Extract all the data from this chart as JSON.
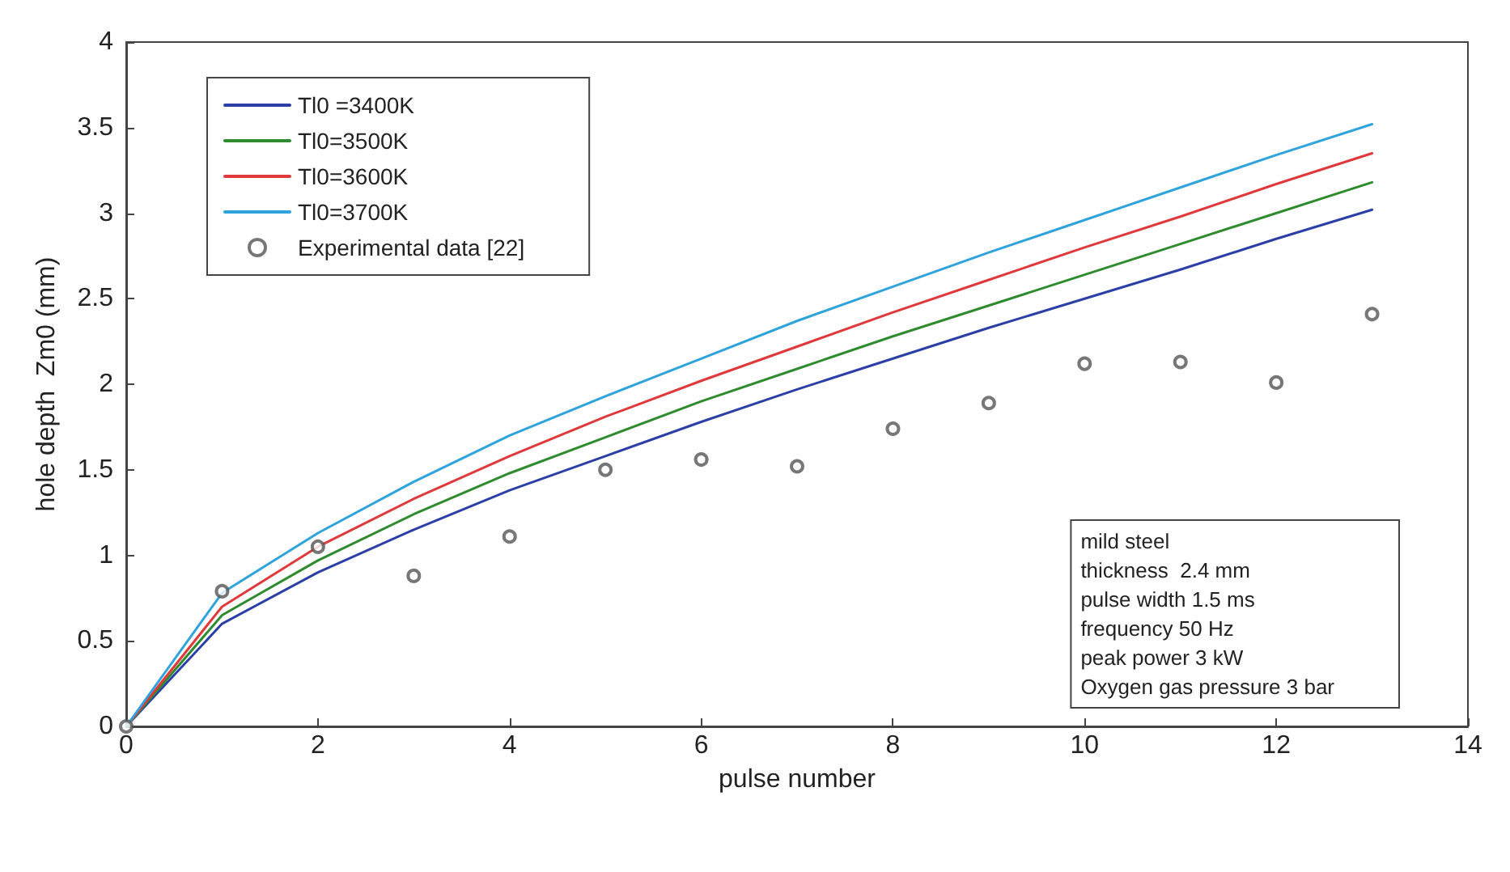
{
  "chart_data": {
    "type": "line",
    "xlabel": "pulse number",
    "ylabel": "hole depth  Zm0 (mm)",
    "x": [
      0,
      1,
      2,
      3,
      4,
      5,
      6,
      7,
      8,
      9,
      10,
      11,
      12,
      13
    ],
    "xlim": [
      0,
      14
    ],
    "xticks": [
      0,
      2,
      4,
      6,
      8,
      10,
      12,
      14
    ],
    "ylim": [
      0,
      4
    ],
    "yticks": [
      0,
      0.5,
      1,
      1.5,
      2,
      2.5,
      3,
      3.5,
      4
    ],
    "grid": false,
    "legend": "top left",
    "marker": "none",
    "line_style": "solid",
    "series": [
      {
        "name": "Tl0 =3400K",
        "color": "#2b3fa6",
        "values": [
          0,
          0.6,
          0.9,
          1.15,
          1.38,
          1.58,
          1.78,
          1.97,
          2.15,
          2.33,
          2.5,
          2.67,
          2.85,
          3.02
        ]
      },
      {
        "name": "Tl0=3500K",
        "color": "#2e8b2e",
        "values": [
          0,
          0.65,
          0.97,
          1.24,
          1.48,
          1.69,
          1.9,
          2.09,
          2.28,
          2.46,
          2.64,
          2.82,
          3.0,
          3.18
        ]
      },
      {
        "name": "Tl0=3600K",
        "color": "#e0393b",
        "values": [
          0,
          0.7,
          1.05,
          1.33,
          1.58,
          1.81,
          2.02,
          2.22,
          2.42,
          2.61,
          2.8,
          2.98,
          3.17,
          3.35
        ]
      },
      {
        "name": "Tl0=3700K",
        "color": "#2ea3dc",
        "values": [
          0,
          0.78,
          1.13,
          1.43,
          1.7,
          1.93,
          2.15,
          2.37,
          2.57,
          2.77,
          2.96,
          3.15,
          3.34,
          3.52
        ]
      },
      {
        "name": "Experimental data [22]",
        "type": "scatter",
        "marker": "circle",
        "color": "#555555",
        "values": [
          0,
          0.79,
          1.05,
          0.88,
          1.11,
          1.5,
          1.56,
          1.52,
          1.74,
          1.89,
          2.12,
          2.13,
          2.01,
          2.41
        ]
      }
    ],
    "annotations": [
      "mild steel",
      "thickness  2.4 mm",
      "pulse width 1.5 ms",
      "frequency 50 Hz",
      "peak power 3 kW",
      "Oxygen gas pressure 3 bar"
    ]
  }
}
